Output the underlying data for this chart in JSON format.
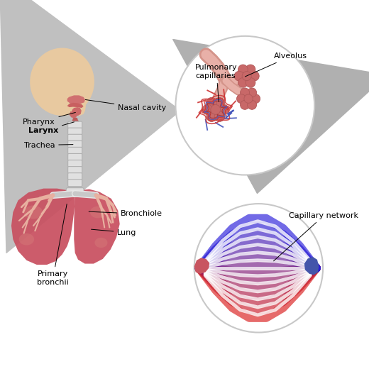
{
  "bg": "#ffffff",
  "skin": "#e8c9a0",
  "lung_red": "#c85060",
  "lung_highlight": "#d47878",
  "airway_pink": "#d4948a",
  "trachea_fill": "#e0e0e0",
  "trachea_edge": "#b0b0b0",
  "alv_red": "#c86868",
  "alv_edge": "#b05858",
  "red_vessel": "#cc3333",
  "blue_vessel": "#4455bb",
  "circle_edge": "#c8c8c8",
  "arrow_gray": "#b8b8b8",
  "arrow_dark": "#a0a0a0",
  "label_fs": 8.0,
  "nasal_pink": "#d07070",
  "pharynx_pink": "#cc6868",
  "bronchi_light": "#e8b0a0",
  "labels": {
    "nasal_cavity": "Nasal cavity",
    "pharynx": "Pharynx",
    "larynx": "Larynx",
    "trachea": "Trachea",
    "bronchiole": "Bronchiole",
    "lung": "Lung",
    "primary_bronchii": "Primary\nbronchii",
    "alveolus": "Alveolus",
    "pulmonary_capillaries": "Pulmonary\ncapillaries",
    "capillary_network": "Capillary network"
  }
}
